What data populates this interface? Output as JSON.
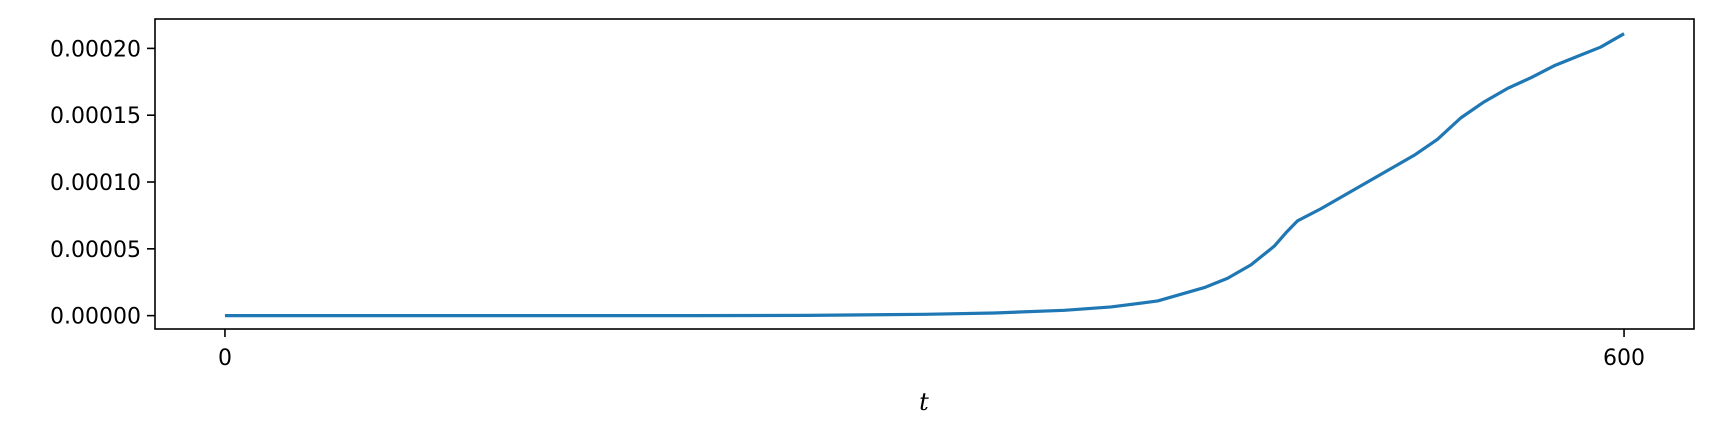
{
  "chart_data": {
    "type": "line",
    "title": "",
    "xlabel": "t",
    "ylabel": "",
    "xlim": [
      -30,
      630
    ],
    "ylim": [
      -1e-05,
      0.000222
    ],
    "x_ticks": [
      0,
      600
    ],
    "x_tick_labels": [
      "0",
      "600"
    ],
    "y_ticks": [
      0,
      5e-05,
      0.0001,
      0.00015,
      0.0002
    ],
    "y_tick_labels": [
      "0.00000",
      "0.00005",
      "0.00010",
      "0.00015",
      "0.00020"
    ],
    "grid": false,
    "legend": "none",
    "series": [
      {
        "color": "#1f77b4",
        "x": [
          0,
          100,
          200,
          250,
          300,
          330,
          360,
          380,
          400,
          420,
          430,
          440,
          445,
          450,
          455,
          460,
          470,
          480,
          490,
          500,
          510,
          520,
          530,
          540,
          550,
          560,
          570,
          580,
          590,
          600
        ],
        "y": [
          0,
          0,
          0,
          2e-07,
          1e-06,
          2e-06,
          4e-06,
          6.5e-06,
          1.1e-05,
          2.1e-05,
          2.8e-05,
          3.8e-05,
          4.5e-05,
          5.2e-05,
          6.2e-05,
          7.1e-05,
          8e-05,
          9e-05,
          0.0001,
          0.00011,
          0.00012,
          0.000132,
          0.000148,
          0.00016,
          0.00017,
          0.000178,
          0.000187,
          0.000194,
          0.000201,
          0.000211
        ]
      }
    ]
  }
}
